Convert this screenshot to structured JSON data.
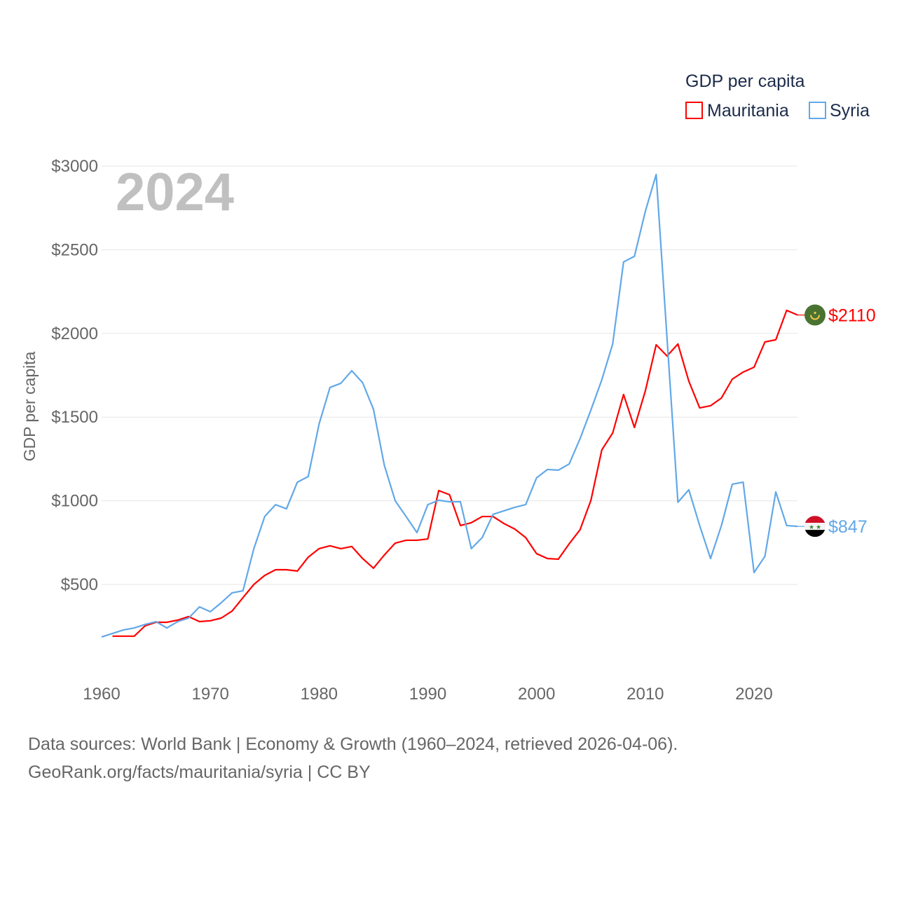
{
  "chart_data": {
    "type": "line",
    "title": "GDP per capita",
    "year_label": "2024",
    "xlabel": "",
    "ylabel": "GDP per capita",
    "xlim": [
      1960,
      2024
    ],
    "ylim": [
      0,
      3000
    ],
    "x_ticks": [
      1960,
      1970,
      1980,
      1990,
      2000,
      2010,
      2020
    ],
    "y_ticks": [
      500,
      1000,
      1500,
      2000,
      2500,
      3000
    ],
    "y_tick_labels": [
      "$500",
      "$1000",
      "$1500",
      "$2000",
      "$2500",
      "$3000"
    ],
    "grid": true,
    "legend_position": "top-right",
    "series": [
      {
        "name": "Mauritania",
        "color": "#ff0000",
        "end_label": "$2110",
        "flag": "mauritania-flag",
        "start_year": 1961,
        "values": [
          191,
          191,
          191,
          253,
          274,
          274,
          287,
          308,
          278,
          283,
          299,
          341,
          421,
          500,
          554,
          588,
          588,
          580,
          663,
          714,
          731,
          714,
          727,
          655,
          597,
          676,
          747,
          764,
          764,
          772,
          1061,
          1036,
          852,
          869,
          906,
          906,
          864,
          831,
          780,
          684,
          655,
          651,
          743,
          827,
          1003,
          1304,
          1405,
          1635,
          1438,
          1656,
          1932,
          1865,
          1937,
          1715,
          1555,
          1568,
          1614,
          1727,
          1769,
          1798,
          1949,
          1962,
          2138,
          2110
        ]
      },
      {
        "name": "Syria",
        "color": "#62a8e8",
        "end_label": "$847",
        "flag": "syria-flag",
        "start_year": 1960,
        "values": [
          186,
          207,
          228,
          240,
          261,
          278,
          240,
          278,
          299,
          366,
          337,
          391,
          450,
          462,
          714,
          906,
          977,
          952,
          1111,
          1145,
          1459,
          1677,
          1702,
          1777,
          1706,
          1547,
          1212,
          1000,
          906,
          810,
          977,
          1003,
          994,
          994,
          714,
          780,
          919,
          940,
          961,
          977,
          1137,
          1187,
          1183,
          1220,
          1371,
          1543,
          1723,
          1937,
          2427,
          2461,
          2729,
          2950,
          1970,
          991,
          1066,
          852,
          655,
          852,
          1099,
          1111,
          571,
          668,
          1053,
          852,
          847
        ]
      }
    ]
  },
  "footer": {
    "line1": "Data sources: World Bank | Economy & Growth (1960–2024, retrieved 2026-04-06).",
    "line2": "GeoRank.org/facts/mauritania/syria | CC BY"
  }
}
